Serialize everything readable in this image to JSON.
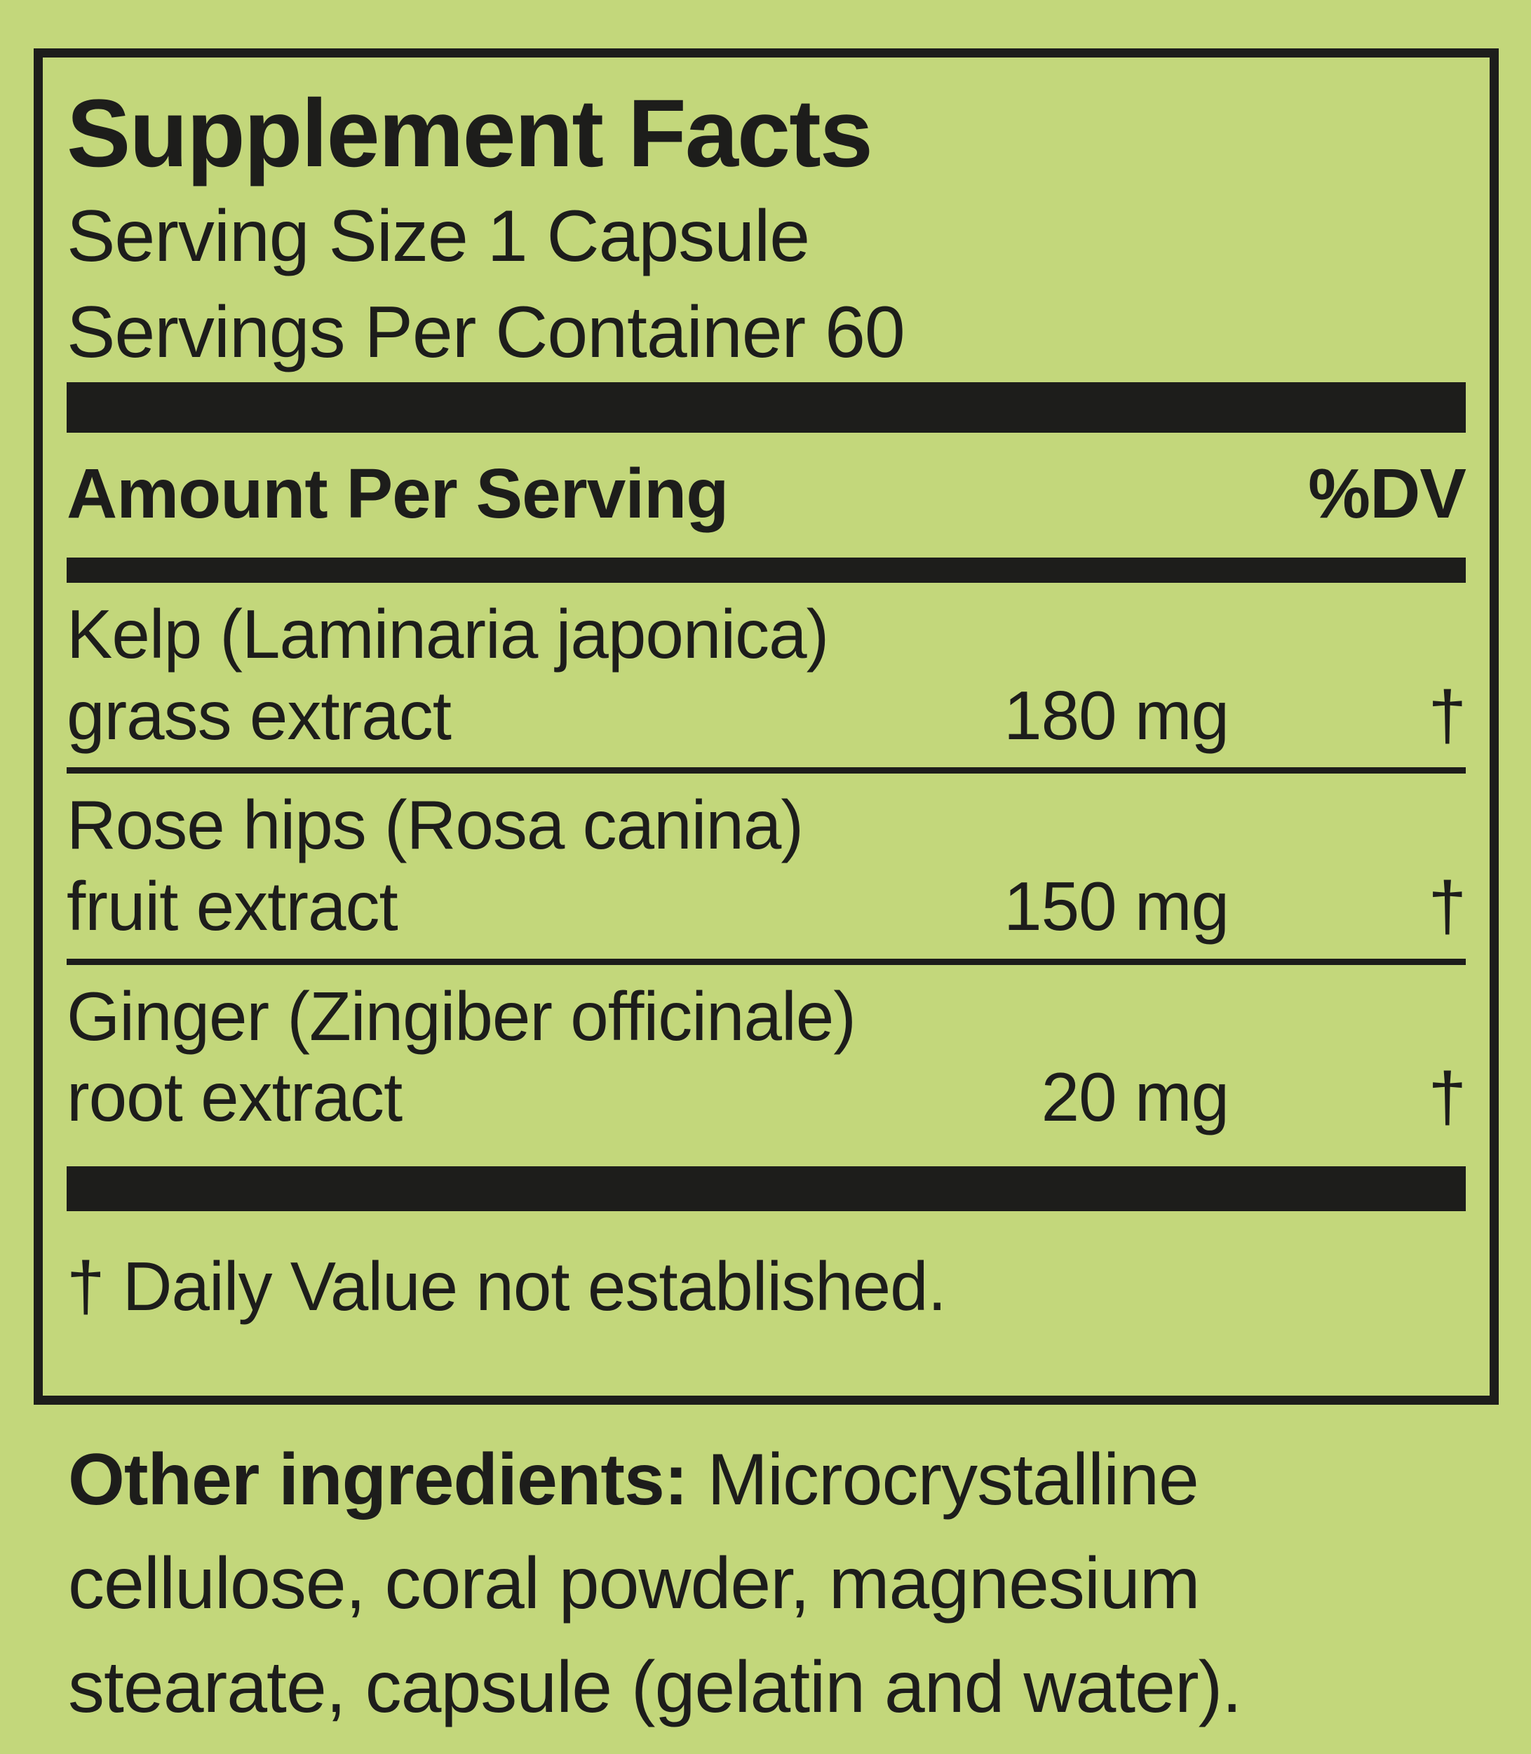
{
  "colors": {
    "background": "#c3d77b",
    "ink": "#1d1d1b"
  },
  "panel": {
    "title": "Supplement Facts",
    "serving_size": "Serving Size 1 Capsule",
    "servings_per_container": "Servings Per Container 60",
    "columns": {
      "amount_header": "Amount Per Serving",
      "dv_header": "%DV"
    },
    "rows": [
      {
        "name": "Kelp (Laminaria japonica)",
        "part": "grass extract",
        "amount": "180 mg",
        "dv": "†"
      },
      {
        "name": "Rose hips (Rosa canina)",
        "part": "fruit extract",
        "amount": "150 mg",
        "dv": "†"
      },
      {
        "name": "Ginger (Zingiber officinale)",
        "part": "root extract",
        "amount": "20 mg",
        "dv": "†"
      }
    ],
    "footnote": "† Daily Value not established."
  },
  "other_ingredients": {
    "lead": "Other ingredients:",
    "rest": " Microcrystalline\ncellulose, coral powder, magnesium\nstearate, capsule (gelatin and water)."
  }
}
